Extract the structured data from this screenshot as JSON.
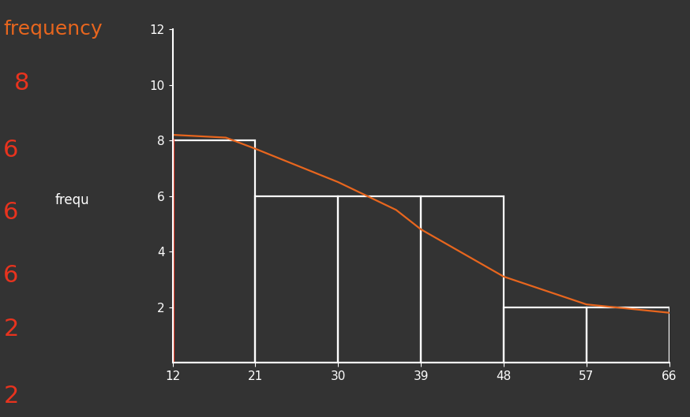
{
  "chart_data": {
    "type": "histogram",
    "bins": [
      12,
      21,
      30,
      39,
      48,
      57,
      66
    ],
    "counts": [
      8,
      6,
      6,
      6,
      2,
      2
    ],
    "color": "#ffffff",
    "curve": {
      "type": "line",
      "color": "#e8661e",
      "x": [
        12,
        17.8,
        21,
        30,
        36.3,
        39,
        48,
        57,
        66
      ],
      "values": [
        8.2,
        8.1,
        7.7,
        6.5,
        5.5,
        4.8,
        3.1,
        2.1,
        1.8
      ]
    },
    "annotations": [
      {
        "text": "frequency",
        "color": "#e8661e"
      },
      {
        "text": "8",
        "color": "#e8331e"
      },
      {
        "text": "6",
        "color": "#e8331e"
      },
      {
        "text": "6",
        "color": "#e8331e"
      },
      {
        "text": "6",
        "color": "#e8331e"
      },
      {
        "text": "2",
        "color": "#e8331e"
      },
      {
        "text": "2",
        "color": "#e8331e"
      },
      {
        "text": "frequ",
        "color": "#ffffff"
      }
    ],
    "xlim": [
      12,
      66
    ],
    "xticks": [
      12,
      21,
      30,
      39,
      48,
      57,
      66
    ],
    "ylim": [
      0,
      12
    ],
    "yticks": [
      2,
      4,
      6,
      8,
      10,
      12
    ],
    "grid": false
  }
}
